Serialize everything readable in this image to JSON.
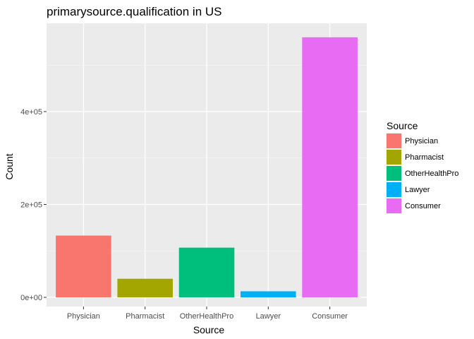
{
  "chart_data": {
    "type": "bar",
    "title": "primarysource.qualification in US",
    "xlabel": "Source",
    "ylabel": "Count",
    "categories": [
      "Physician",
      "Pharmacist",
      "OtherHealthPro",
      "Lawyer",
      "Consumer"
    ],
    "values": [
      133000,
      40000,
      107000,
      13000,
      560000
    ],
    "colors": [
      "#F8766D",
      "#A3A500",
      "#00BF7D",
      "#00B0F6",
      "#E76BF3"
    ],
    "ylim": [
      0,
      590000
    ],
    "y_ticks": [
      0,
      200000,
      400000
    ],
    "y_tick_labels": [
      "0e+00",
      "2e+05",
      "4e+05"
    ],
    "grid": true,
    "legend": {
      "title": "Source",
      "position": "right",
      "entries": [
        "Physician",
        "Pharmacist",
        "OtherHealthPro",
        "Lawyer",
        "Consumer"
      ]
    }
  }
}
